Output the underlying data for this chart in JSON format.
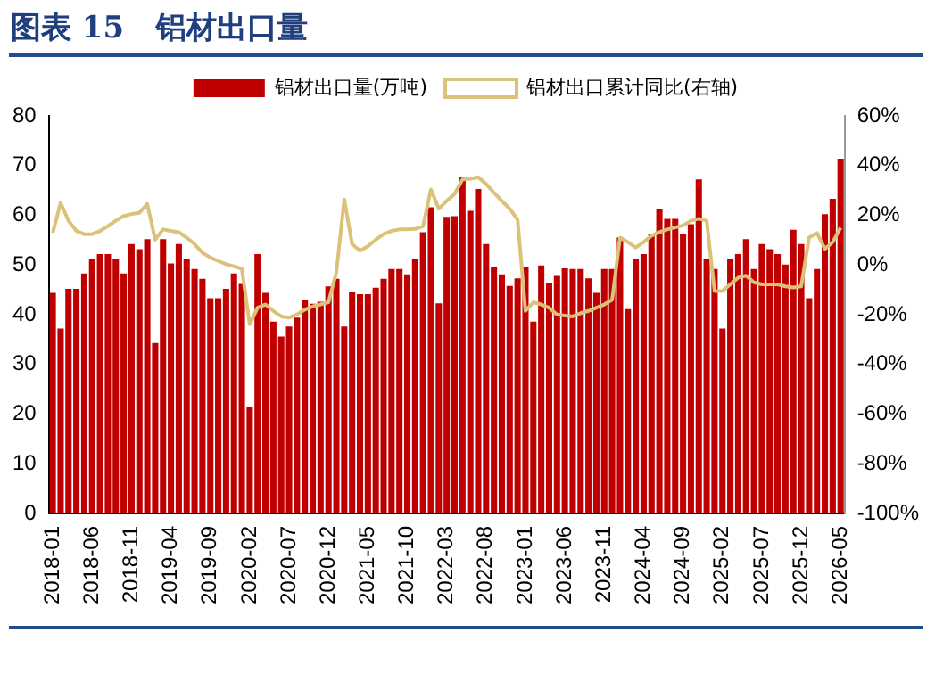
{
  "chart_data": {
    "type": "bar",
    "title": "图表 15   铝材出口量",
    "categories": [
      "2018-01",
      null,
      null,
      null,
      null,
      "2018-06",
      null,
      null,
      null,
      null,
      "2018-11",
      null,
      null,
      null,
      null,
      "2019-04",
      null,
      null,
      null,
      null,
      "2019-09",
      null,
      null,
      null,
      null,
      "2020-02",
      null,
      null,
      null,
      null,
      "2020-07",
      null,
      null,
      null,
      null,
      "2020-12",
      null,
      null,
      null,
      null,
      "2021-05",
      null,
      null,
      null,
      null,
      "2021-10",
      null,
      null,
      null,
      null,
      "2022-03",
      null,
      null,
      null,
      null,
      "2022-08",
      null,
      null,
      null,
      null,
      "2023-01",
      null,
      null,
      null,
      null,
      "2023-06",
      null,
      null,
      null,
      null,
      "2023-11",
      null,
      null,
      null,
      null,
      "2024-04",
      null,
      null,
      null,
      null,
      "2024-09",
      null,
      null,
      null,
      null,
      "2025-02",
      null,
      null,
      null,
      null,
      "2025-07",
      null,
      null,
      null,
      null,
      "2025-12",
      null,
      null,
      null,
      null,
      "2026-05"
    ],
    "series": [
      {
        "name": "铝材出口量(万吨)",
        "color": "#c00000",
        "values": [
          44.4,
          37.2,
          45.2,
          45.2,
          48.3,
          51.2,
          52.2,
          52.2,
          51.2,
          48.3,
          54.2,
          53.2,
          55.2,
          34.3,
          55.2,
          50.3,
          54.2,
          51.2,
          49.2,
          47.2,
          43.3,
          43.3,
          45.2,
          48.3,
          46.2,
          21.4,
          52.2,
          44.4,
          38.6,
          35.6,
          37.6,
          39.4,
          42.9,
          42.2,
          42.6,
          45.7,
          47.2,
          37.6,
          44.5,
          44.1,
          44.1,
          45.4,
          47.2,
          49.2,
          49.2,
          48.1,
          51.2,
          56.6,
          61.6,
          42.3,
          59.7,
          59.8,
          67.7,
          60.9,
          65.3,
          54.2,
          49.7,
          48.1,
          45.8,
          47.3,
          49.7,
          38.6,
          49.9,
          46.4,
          47.8,
          49.3,
          49.2,
          49.2,
          47.3,
          44.4,
          49.2,
          49.2,
          55.5,
          41.1,
          51.2,
          52.2,
          56.2,
          61.2,
          59.3,
          59.3,
          56.2,
          58.2,
          67.2,
          51.2,
          49.2,
          37.2,
          51.2,
          52.2,
          55.2,
          49.2,
          54.2,
          53.2,
          52.2,
          50.1,
          57.1,
          54.2,
          43.3,
          49.2,
          60.2,
          63.3,
          71.4
        ]
      },
      {
        "name": "铝材出口累计同比(右轴)",
        "type": "line",
        "axis": "y2",
        "color": "#dcc278",
        "values": [
          12.9,
          25,
          17.8,
          13.7,
          12.4,
          12.4,
          13.7,
          15.6,
          17.8,
          19.7,
          20.5,
          21,
          24.5,
          10.2,
          14.3,
          13.7,
          13.2,
          11,
          8.4,
          4.9,
          3,
          1.6,
          0.3,
          -0.5,
          -1.6,
          -23.9,
          -17.2,
          -15.9,
          -18.5,
          -20.7,
          -21.2,
          -19.9,
          -18,
          -16.7,
          -15.9,
          -15,
          -3,
          26.4,
          8.4,
          5.7,
          7.5,
          10.2,
          12.4,
          13.7,
          14.3,
          14.3,
          14.5,
          15.6,
          30.4,
          22.6,
          25.8,
          28.5,
          34.4,
          34.7,
          35.3,
          32.6,
          29.1,
          25.8,
          22.6,
          18.3,
          -18.5,
          -15,
          -15.9,
          -17.2,
          -19.9,
          -20.4,
          -20.7,
          -19.4,
          -18.5,
          -17.2,
          -15.9,
          -14,
          11,
          9.2,
          7,
          9.2,
          11.8,
          13.2,
          14.3,
          15.1,
          15.9,
          17.8,
          18.6,
          17.8,
          -10.5,
          -10.5,
          -7.8,
          -5.1,
          -4.3,
          -7,
          -7.8,
          -7.8,
          -7.8,
          -8.6,
          -9.1,
          -8.6,
          11,
          12.9,
          6.5,
          9.2,
          15
        ]
      }
    ],
    "ylim": [
      0,
      80
    ],
    "yticks": [
      0,
      10,
      20,
      30,
      40,
      50,
      60,
      70,
      80
    ],
    "y2lim": [
      -100,
      60
    ],
    "y2ticks": [
      {
        "value": -100,
        "label": "-100%"
      },
      {
        "value": -80,
        "label": "-80%"
      },
      {
        "value": -60,
        "label": "-60%"
      },
      {
        "value": -40,
        "label": "-40%"
      },
      {
        "value": -20,
        "label": "-20%"
      },
      {
        "value": 0,
        "label": "0%"
      },
      {
        "value": 20,
        "label": "20%"
      },
      {
        "value": 40,
        "label": "40%"
      },
      {
        "value": 60,
        "label": "60%"
      }
    ],
    "grid": false,
    "legend": "top",
    "marker": "none"
  }
}
